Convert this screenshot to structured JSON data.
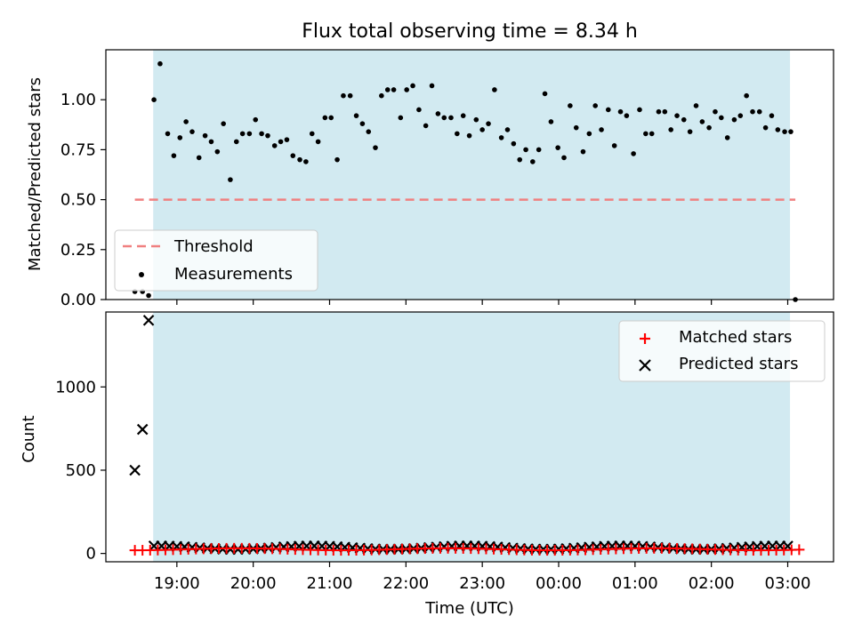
{
  "chart_data": [
    {
      "type": "scatter",
      "title": "Flux total observing time = 8.34 h",
      "xlabel": "",
      "ylabel": "Matched/Predicted stars",
      "x_unit": "hours of UTC, continuing past midnight (24 = 00:00)",
      "xlim": [
        18.07,
        27.6
      ],
      "ylim": [
        0,
        1.25
      ],
      "yticks": [
        0.0,
        0.25,
        0.5,
        0.75,
        1.0
      ],
      "ytick_labels": [
        "0.00",
        "0.25",
        "0.50",
        "0.75",
        "1.00"
      ],
      "observing_window": [
        18.69,
        27.03
      ],
      "threshold": {
        "value": 0.5,
        "x_range": [
          18.45,
          27.1
        ],
        "color": "#f08080"
      },
      "legend": {
        "position": "lower-left",
        "entries": [
          "Threshold",
          "Measurements"
        ]
      },
      "series": [
        {
          "name": "Measurements",
          "color": "#000000",
          "x": [
            18.45,
            18.55,
            18.63,
            18.7,
            18.78,
            18.88,
            18.96,
            19.04,
            19.12,
            19.2,
            19.29,
            19.37,
            19.45,
            19.53,
            19.61,
            19.7,
            19.78,
            19.86,
            19.95,
            20.03,
            20.11,
            20.19,
            20.28,
            20.36,
            20.44,
            20.52,
            20.61,
            20.69,
            20.77,
            20.85,
            20.94,
            21.02,
            21.1,
            21.18,
            21.27,
            21.35,
            21.43,
            21.51,
            21.6,
            21.68,
            21.76,
            21.84,
            21.93,
            22.01,
            22.09,
            22.17,
            22.26,
            22.34,
            22.42,
            22.5,
            22.59,
            22.67,
            22.75,
            22.83,
            22.92,
            23.0,
            23.08,
            23.16,
            23.25,
            23.33,
            23.41,
            23.49,
            23.57,
            23.66,
            23.74,
            23.82,
            23.9,
            23.99,
            24.07,
            24.15,
            24.23,
            24.32,
            24.4,
            24.48,
            24.56,
            24.65,
            24.73,
            24.81,
            24.89,
            24.98,
            25.06,
            25.14,
            25.22,
            25.31,
            25.39,
            25.47,
            25.55,
            25.64,
            25.72,
            25.8,
            25.88,
            25.97,
            26.05,
            26.13,
            26.21,
            26.3,
            26.38,
            26.46,
            26.54,
            26.63,
            26.71,
            26.79,
            26.87,
            26.96,
            27.04,
            27.1
          ],
          "y": [
            0.04,
            0.04,
            0.02,
            1.0,
            1.18,
            0.83,
            0.72,
            0.81,
            0.89,
            0.84,
            0.71,
            0.82,
            0.79,
            0.74,
            0.88,
            0.6,
            0.79,
            0.83,
            0.83,
            0.9,
            0.83,
            0.82,
            0.77,
            0.79,
            0.8,
            0.72,
            0.7,
            0.69,
            0.83,
            0.79,
            0.91,
            0.91,
            0.7,
            1.02,
            1.02,
            0.92,
            0.88,
            0.84,
            0.76,
            1.02,
            1.05,
            1.05,
            0.91,
            1.05,
            1.07,
            0.95,
            0.87,
            1.07,
            0.93,
            0.91,
            0.91,
            0.83,
            0.92,
            0.82,
            0.9,
            0.85,
            0.88,
            1.05,
            0.81,
            0.85,
            0.78,
            0.7,
            0.75,
            0.69,
            0.75,
            1.03,
            0.89,
            0.76,
            0.71,
            0.97,
            0.86,
            0.74,
            0.83,
            0.97,
            0.85,
            0.95,
            0.77,
            0.94,
            0.92,
            0.73,
            0.95,
            0.83,
            0.83,
            0.94,
            0.94,
            0.85,
            0.92,
            0.9,
            0.84,
            0.97,
            0.89,
            0.86,
            0.94,
            0.91,
            0.81,
            0.9,
            0.92,
            1.02,
            0.94,
            0.94,
            0.86,
            0.92,
            0.85,
            0.84,
            0.84,
            0.0
          ]
        }
      ]
    },
    {
      "type": "scatter",
      "title": "",
      "xlabel": "Time (UTC)",
      "ylabel": "Count",
      "x_unit": "hours of UTC, continuing past midnight (24 = 00:00)",
      "xlim": [
        18.07,
        27.6
      ],
      "ylim": [
        -50,
        1450
      ],
      "yticks": [
        0,
        500,
        1000
      ],
      "ytick_labels": [
        "0",
        "500",
        "1000"
      ],
      "xticks": [
        19,
        20,
        21,
        22,
        23,
        24,
        25,
        26,
        27
      ],
      "xtick_labels": [
        "19:00",
        "20:00",
        "21:00",
        "22:00",
        "23:00",
        "00:00",
        "01:00",
        "02:00",
        "03:00"
      ],
      "observing_window": [
        18.69,
        27.03
      ],
      "legend": {
        "position": "upper-right",
        "entries": [
          "Matched stars",
          "Predicted stars"
        ]
      },
      "series": [
        {
          "name": "Matched stars",
          "marker": "plus",
          "color": "#ff0000",
          "x_start": 18.45,
          "x_end": 27.15,
          "x_step": 0.1,
          "values_approx": 25
        },
        {
          "name": "Predicted stars",
          "marker": "x",
          "color": "#000000",
          "x": [
            18.45,
            18.55,
            18.63
          ],
          "y": [
            500,
            745,
            1400
          ],
          "then": {
            "x_start": 18.7,
            "x_end": 27.08,
            "x_step": 0.1,
            "values_approx": 35
          }
        }
      ]
    }
  ]
}
